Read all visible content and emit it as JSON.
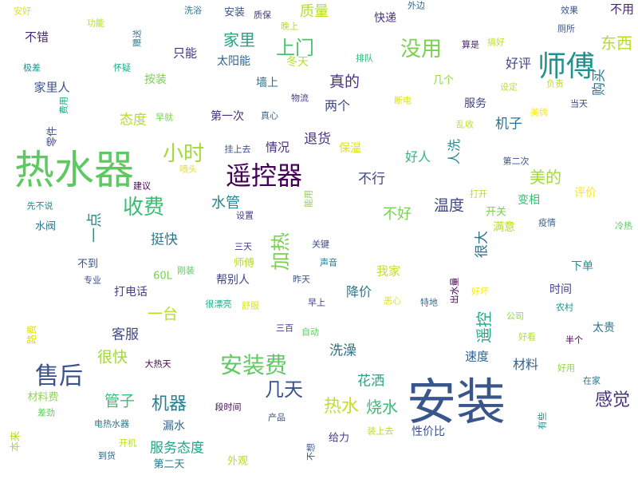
{
  "words": [
    {
      "text": "安装",
      "color": "#39568c"
    },
    {
      "text": "热水器",
      "color": "#5ec962"
    },
    {
      "text": "遥控器",
      "color": "#440154"
    },
    {
      "text": "师傅",
      "color": "#21918c"
    },
    {
      "text": "售后",
      "color": "#3b528b"
    },
    {
      "text": "安装费",
      "color": "#5ec962"
    },
    {
      "text": "没用",
      "color": "#7ad151"
    },
    {
      "text": "收费",
      "color": "#3dbc74"
    },
    {
      "text": "小时",
      "color": "#a2da37"
    },
    {
      "text": "上门",
      "color": "#4ac16d"
    },
    {
      "text": "加热",
      "color": "#7ad151"
    },
    {
      "text": "几天",
      "color": "#39568c"
    },
    {
      "text": "机器",
      "color": "#277f8e"
    },
    {
      "text": "热水",
      "color": "#c2df23"
    },
    {
      "text": "烧水",
      "color": "#3dbc74"
    },
    {
      "text": "感觉",
      "color": "#46337f"
    },
    {
      "text": "东西",
      "color": "#b5de2b"
    },
    {
      "text": "质量",
      "color": "#b5de2b"
    },
    {
      "text": "家里",
      "color": "#22a884"
    },
    {
      "text": "真的",
      "color": "#46337f"
    },
    {
      "text": "美的",
      "color": "#a2da37"
    },
    {
      "text": "遥控",
      "color": "#22a884"
    },
    {
      "text": "很快",
      "color": "#a2da37"
    },
    {
      "text": "管子",
      "color": "#3dbc74"
    },
    {
      "text": "一台",
      "color": "#b5de2b"
    },
    {
      "text": "服务态度",
      "color": "#22a884"
    },
    {
      "text": "洗澡",
      "color": "#2c728e"
    },
    {
      "text": "花洒",
      "color": "#22a884"
    },
    {
      "text": "水管",
      "color": "#25858e"
    },
    {
      "text": "温度",
      "color": "#404688"
    },
    {
      "text": "不好",
      "color": "#7ad151"
    },
    {
      "text": "不行",
      "color": "#414487"
    },
    {
      "text": "退货",
      "color": "#46337f"
    },
    {
      "text": "好评",
      "color": "#404688"
    },
    {
      "text": "机子",
      "color": "#2c728e"
    },
    {
      "text": "态度",
      "color": "#b5de2b"
    },
    {
      "text": "挺快",
      "color": "#2a788e"
    },
    {
      "text": "两个",
      "color": "#404688"
    },
    {
      "text": "材料",
      "color": "#33638d"
    },
    {
      "text": "速度",
      "color": "#33638d"
    },
    {
      "text": "降价",
      "color": "#2a788e"
    },
    {
      "text": "很大",
      "color": "#2c728e"
    },
    {
      "text": "客服",
      "color": "#404688"
    },
    {
      "text": "一点",
      "color": "#21918c"
    },
    {
      "text": "人洗",
      "color": "#25858e"
    },
    {
      "text": "好人",
      "color": "#35b779"
    },
    {
      "text": "评价",
      "color": "#fde725"
    },
    {
      "text": "购买",
      "color": "#2a788e"
    },
    {
      "text": "不用",
      "color": "#482878"
    },
    {
      "text": "下单",
      "color": "#21918c"
    },
    {
      "text": "时间",
      "color": "#404688"
    },
    {
      "text": "太贵",
      "color": "#2a788e"
    },
    {
      "text": "我家",
      "color": "#c2df23"
    },
    {
      "text": "情况",
      "color": "#472f7d"
    },
    {
      "text": "保温",
      "color": "#dce319"
    },
    {
      "text": "只能",
      "color": "#46337f"
    },
    {
      "text": "不错",
      "color": "#482878"
    },
    {
      "text": "太阳能",
      "color": "#33638d"
    },
    {
      "text": "冬天",
      "color": "#b5de2b"
    },
    {
      "text": "墙上",
      "color": "#2c728e"
    },
    {
      "text": "按装",
      "color": "#7ad151"
    },
    {
      "text": "家里人",
      "color": "#3b528b"
    },
    {
      "text": "第一次",
      "color": "#472d7b"
    },
    {
      "text": "快递",
      "color": "#453781"
    },
    {
      "text": "服务",
      "color": "#414487"
    },
    {
      "text": "几个",
      "color": "#8fd744"
    },
    {
      "text": "打电话",
      "color": "#433e85"
    },
    {
      "text": "帮别人",
      "color": "#404688"
    },
    {
      "text": "变相",
      "color": "#3dbc74"
    },
    {
      "text": "满意",
      "color": "#b5de2b"
    },
    {
      "text": "开关",
      "color": "#7ad151"
    },
    {
      "text": "给力",
      "color": "#443983"
    },
    {
      "text": "性价比",
      "color": "#3b528b"
    },
    {
      "text": "外观",
      "color": "#b5de2b"
    },
    {
      "text": "第二天",
      "color": "#2a788e"
    },
    {
      "text": "材料费",
      "color": "#8fd744"
    },
    {
      "text": "漏水",
      "color": "#31688e"
    },
    {
      "text": "水阀",
      "color": "#2c728e"
    },
    {
      "text": "不到",
      "color": "#3b528b"
    },
    {
      "text": "师傅",
      "color": "#b5de2b"
    },
    {
      "text": "60L",
      "color": "#7ad151"
    },
    {
      "text": "安好",
      "color": "#dce319"
    },
    {
      "text": "洗浴",
      "color": "#2a788e"
    },
    {
      "text": "安装",
      "color": "#3b528b"
    },
    {
      "text": "质保",
      "color": "#453781"
    },
    {
      "text": "晚上",
      "color": "#b5de2b"
    },
    {
      "text": "外边",
      "color": "#31688e"
    },
    {
      "text": "效果",
      "color": "#3b528b"
    },
    {
      "text": "厕所",
      "color": "#3b528b"
    },
    {
      "text": "功能",
      "color": "#b5de2b"
    },
    {
      "text": "极差",
      "color": "#21918c"
    },
    {
      "text": "怀疑",
      "color": "#22a884"
    },
    {
      "text": "排队",
      "color": "#35b779"
    },
    {
      "text": "算是",
      "color": "#482878"
    },
    {
      "text": "搞好",
      "color": "#c2df23"
    },
    {
      "text": "设定",
      "color": "#c2df23"
    },
    {
      "text": "负责",
      "color": "#c2df23"
    },
    {
      "text": "当天",
      "color": "#404688"
    },
    {
      "text": "断电",
      "color": "#dce319"
    },
    {
      "text": "物流",
      "color": "#443983"
    },
    {
      "text": "真心",
      "color": "#31688e"
    },
    {
      "text": "早就",
      "color": "#7ad151"
    },
    {
      "text": "美牌",
      "color": "#fde725"
    },
    {
      "text": "乱收",
      "color": "#c2df23"
    },
    {
      "text": "第二次",
      "color": "#3b528b"
    },
    {
      "text": "建议",
      "color": "#440154"
    },
    {
      "text": "喷头",
      "color": "#dce319"
    },
    {
      "text": "挂上去",
      "color": "#3b528b"
    },
    {
      "text": "打开",
      "color": "#b5de2b"
    },
    {
      "text": "疫情",
      "color": "#33638d"
    },
    {
      "text": "冷热",
      "color": "#5ec962"
    },
    {
      "text": "先不说",
      "color": "#25858e"
    },
    {
      "text": "设置",
      "color": "#433e85"
    },
    {
      "text": "三天",
      "color": "#453781"
    },
    {
      "text": "关键",
      "color": "#3e4989"
    },
    {
      "text": "声音",
      "color": "#2a788e"
    },
    {
      "text": "刚装",
      "color": "#5ec962"
    },
    {
      "text": "昨天",
      "color": "#3b528b"
    },
    {
      "text": "专业",
      "color": "#3e4989"
    },
    {
      "text": "很漂亮",
      "color": "#22a884"
    },
    {
      "text": "舒服",
      "color": "#dce319"
    },
    {
      "text": "早上",
      "color": "#3e4989"
    },
    {
      "text": "恶心",
      "color": "#dce319"
    },
    {
      "text": "特地",
      "color": "#2c728e"
    },
    {
      "text": "好坏",
      "color": "#fde725"
    },
    {
      "text": "公司",
      "color": "#8fd744"
    },
    {
      "text": "农村",
      "color": "#21918c"
    },
    {
      "text": "半个",
      "color": "#440154"
    },
    {
      "text": "三百",
      "color": "#433e85"
    },
    {
      "text": "自动",
      "color": "#5ec962"
    },
    {
      "text": "好看",
      "color": "#b5de2b"
    },
    {
      "text": "大热天",
      "color": "#440154"
    },
    {
      "text": "好用",
      "color": "#8fd744"
    },
    {
      "text": "在家",
      "color": "#2a788e"
    },
    {
      "text": "段时间",
      "color": "#440154"
    },
    {
      "text": "产品",
      "color": "#3b528b"
    },
    {
      "text": "装上去",
      "color": "#b5de2b"
    },
    {
      "text": "差劲",
      "color": "#5ec962"
    },
    {
      "text": "电热水器",
      "color": "#2a788e"
    },
    {
      "text": "开机",
      "color": "#b5de2b"
    },
    {
      "text": "到货",
      "color": "#31688e"
    },
    {
      "text": "本来",
      "color": "#b5de2b"
    },
    {
      "text": "路费",
      "color": "#dce319"
    },
    {
      "text": "零件",
      "color": "#3e4989"
    },
    {
      "text": "费用",
      "color": "#22a884"
    },
    {
      "text": "赠送",
      "color": "#2a788e"
    },
    {
      "text": "出水量",
      "color": "#440154"
    },
    {
      "text": "不想",
      "color": "#3b528b"
    },
    {
      "text": "有些",
      "color": "#21918c"
    },
    {
      "text": "能用",
      "color": "#8fd744"
    }
  ]
}
